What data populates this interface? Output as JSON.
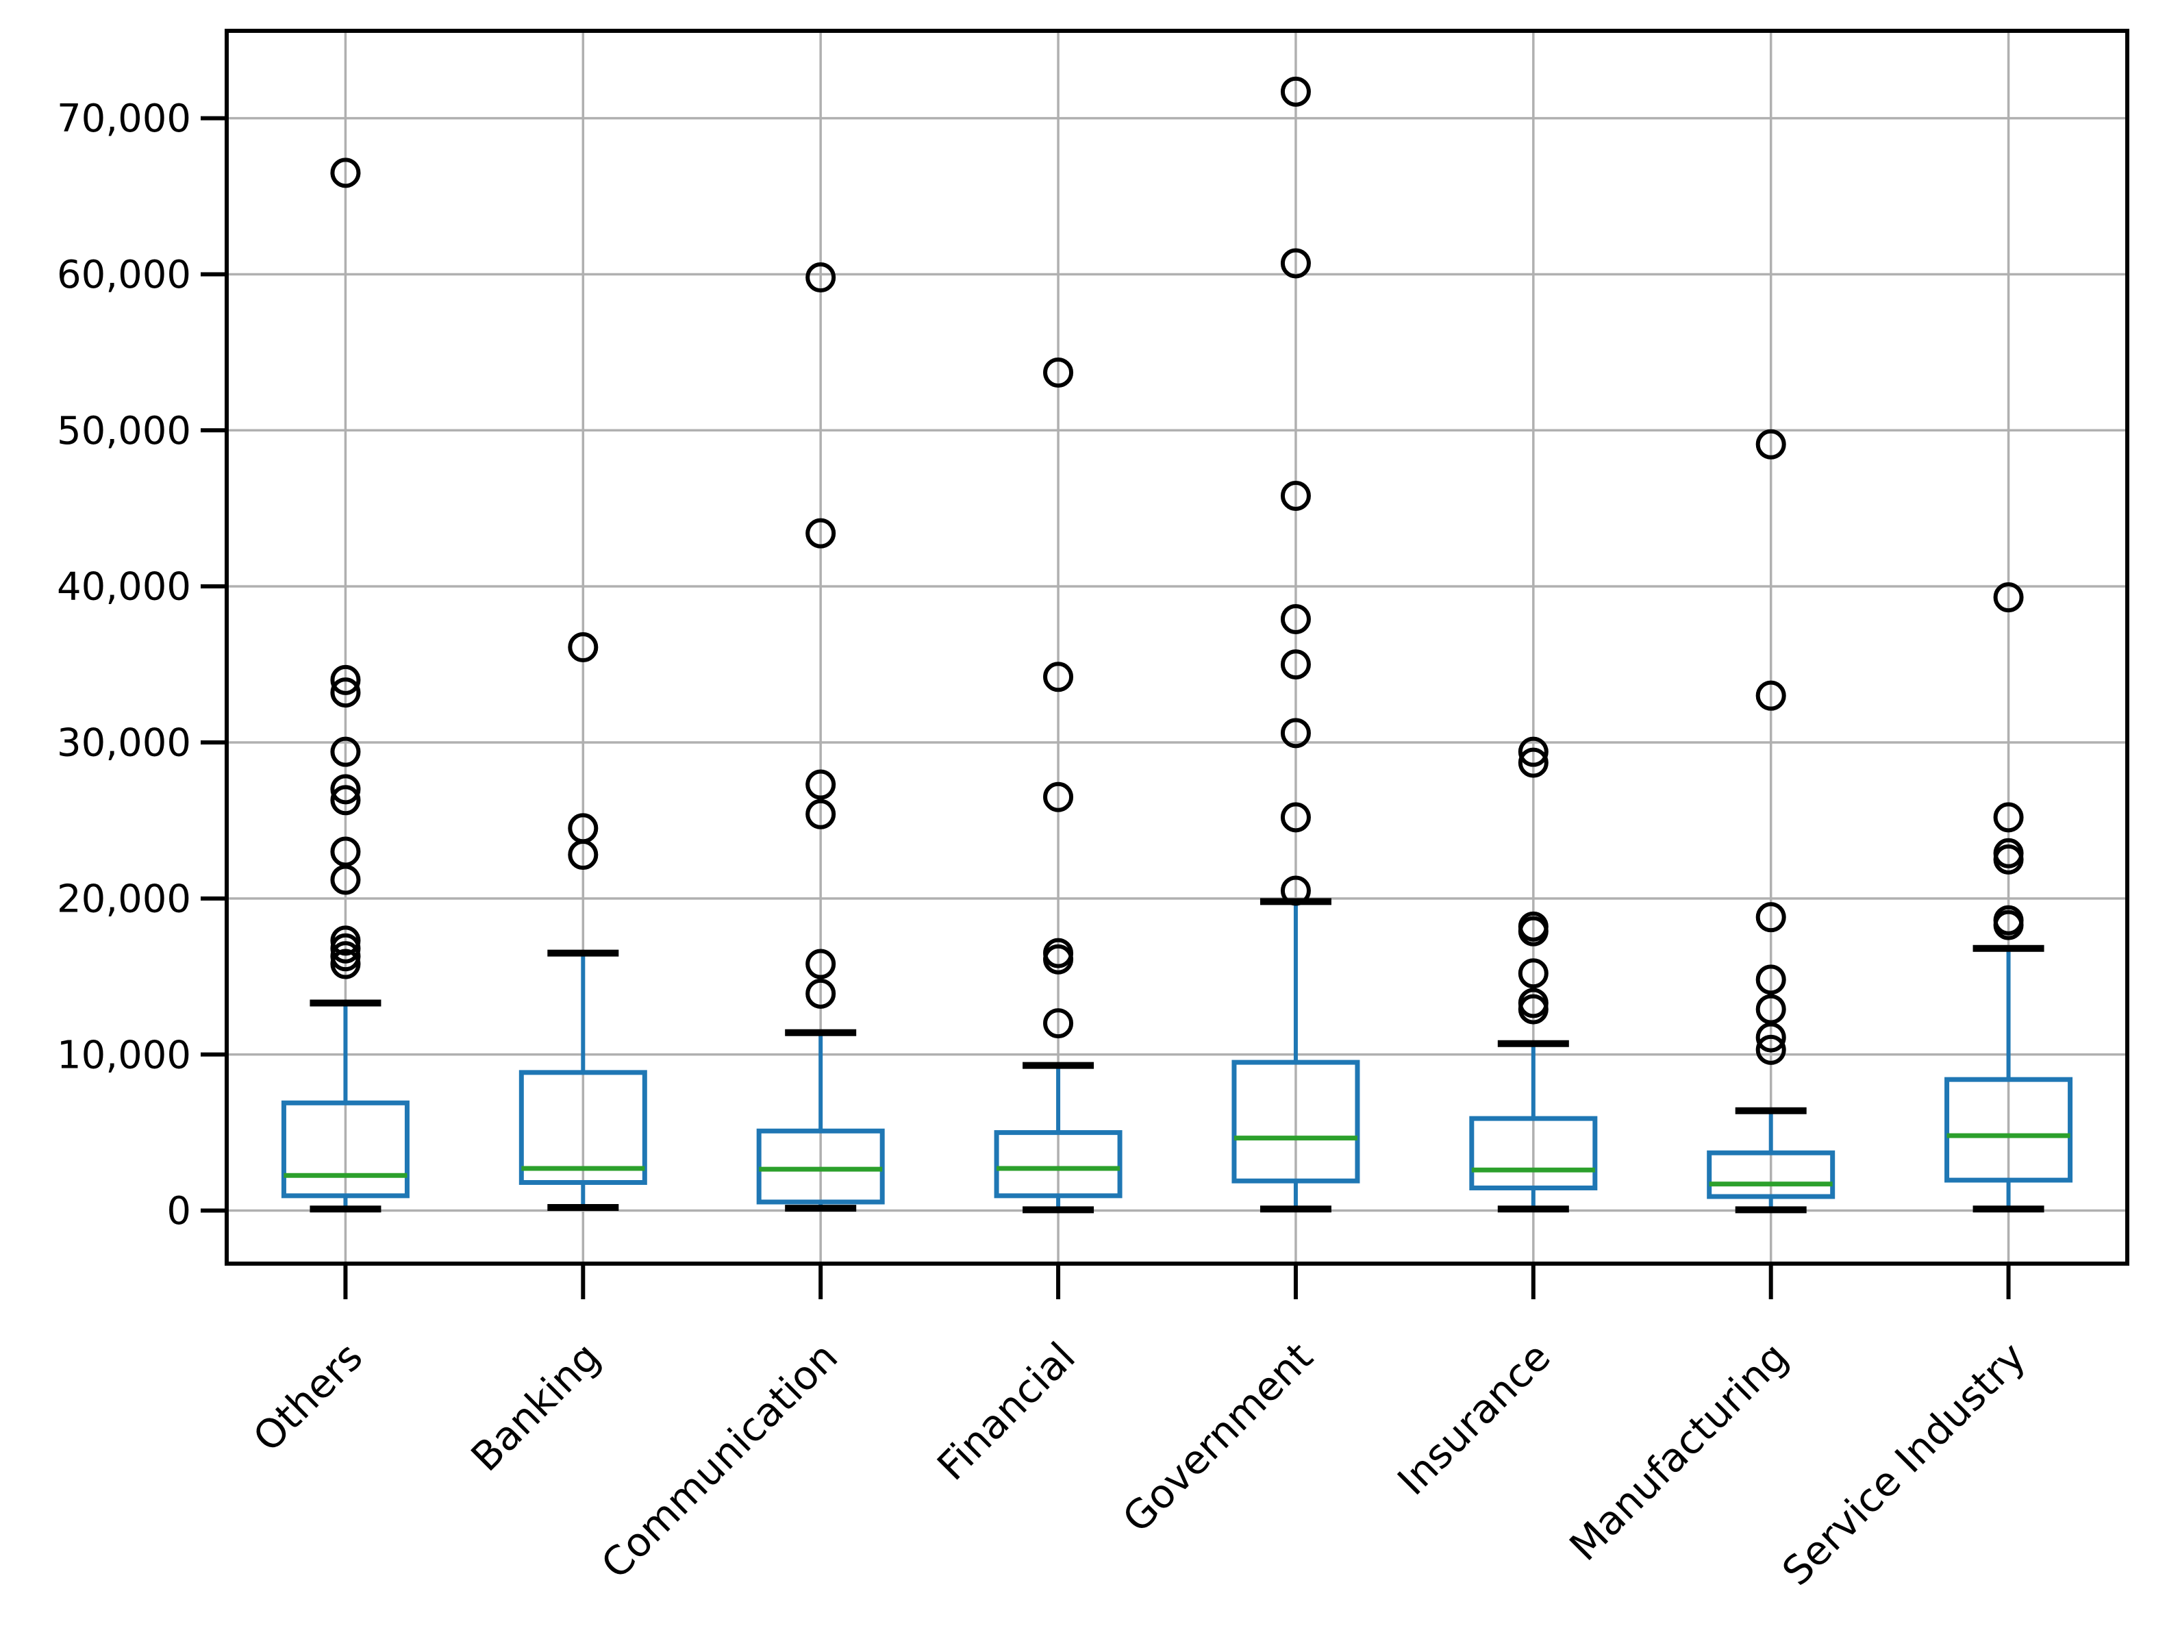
{
  "chart_data": {
    "type": "boxplot",
    "title": "",
    "xlabel": "",
    "ylabel": "",
    "categories": [
      "Others",
      "Banking",
      "Communication",
      "Financial",
      "Government",
      "Insurance",
      "Manufacturing",
      "Service Industry"
    ],
    "yticks": [
      0,
      10000,
      20000,
      30000,
      40000,
      50000,
      60000,
      70000
    ],
    "ytick_labels": [
      "0",
      "10,000",
      "20,000",
      "30,000",
      "40,000",
      "50,000",
      "60,000",
      "70,000"
    ],
    "ylim": [
      -3400,
      75600
    ],
    "grid": "both",
    "legend": "none",
    "series": [
      {
        "name": "Others",
        "whislo": 100,
        "q1": 950,
        "med": 2250,
        "q3": 6900,
        "whishi": 13300,
        "outliers": [
          15800,
          16300,
          16800,
          17300,
          21200,
          23000,
          26300,
          27000,
          29400,
          33200,
          34000,
          66500
        ]
      },
      {
        "name": "Banking",
        "whislo": 200,
        "q1": 1800,
        "med": 2700,
        "q3": 8850,
        "whishi": 16500,
        "outliers": [
          22800,
          24500,
          36100
        ]
      },
      {
        "name": "Communication",
        "whislo": 150,
        "q1": 550,
        "med": 2650,
        "q3": 5100,
        "whishi": 11400,
        "outliers": [
          13900,
          15800,
          25400,
          27300,
          43400,
          59800
        ]
      },
      {
        "name": "Financial",
        "whislo": 50,
        "q1": 950,
        "med": 2700,
        "q3": 5000,
        "whishi": 9300,
        "outliers": [
          12000,
          16100,
          16500,
          26500,
          34200,
          53700
        ]
      },
      {
        "name": "Government",
        "whislo": 100,
        "q1": 1900,
        "med": 4650,
        "q3": 9500,
        "whishi": 19800,
        "outliers": [
          20500,
          25200,
          30600,
          35000,
          37900,
          45800,
          60700,
          71700
        ]
      },
      {
        "name": "Insurance",
        "whislo": 100,
        "q1": 1450,
        "med": 2600,
        "q3": 5900,
        "whishi": 10700,
        "outliers": [
          12900,
          13300,
          15200,
          17900,
          18200,
          28700,
          29400
        ]
      },
      {
        "name": "Manufacturing",
        "whislo": 50,
        "q1": 900,
        "med": 1700,
        "q3": 3700,
        "whishi": 6400,
        "outliers": [
          10300,
          11100,
          12900,
          14800,
          18800,
          33000,
          49100
        ]
      },
      {
        "name": "Service Industry",
        "whislo": 100,
        "q1": 1950,
        "med": 4800,
        "q3": 8400,
        "whishi": 16800,
        "outliers": [
          18300,
          18600,
          22500,
          22900,
          25200,
          39300
        ]
      }
    ],
    "colors": {
      "box": "#1f77b4",
      "whisker": "#1f77b4",
      "median": "#2ca02c",
      "cap": "#000000",
      "outlier": "#000000",
      "grid": "#b0b0b0",
      "axis": "#000000",
      "background": "#ffffff"
    }
  }
}
